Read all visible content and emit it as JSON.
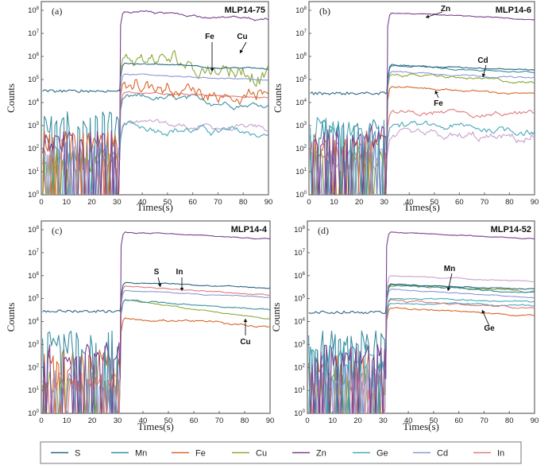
{
  "chart_data": [
    {
      "type": "line",
      "panel_label": "(a)",
      "title": "MLP14-75",
      "xlabel": "Times(s)",
      "ylabel": "Counts",
      "xlim": [
        0,
        90
      ],
      "ylim_log10": [
        0,
        8
      ],
      "x_ticks": [
        "0",
        "10",
        "20",
        "30",
        "40",
        "50",
        "60",
        "70",
        "80",
        "90"
      ],
      "y_ticks": [
        "10^0",
        "10^1",
        "10^2",
        "10^3",
        "10^4",
        "10^5",
        "10^6",
        "10^7",
        "10^8"
      ],
      "signal_onset_s": 31,
      "series": [
        {
          "name": "Zn",
          "background_log": 2.0,
          "signal_log_start": 7.95,
          "signal_log_end": 7.6,
          "noise": 0.05
        },
        {
          "name": "S",
          "background_log": 4.5,
          "signal_log_start": 5.7,
          "signal_log_end": 5.45,
          "noise": 0.03
        },
        {
          "name": "Cd",
          "background_log": 1.5,
          "signal_log_start": 5.25,
          "signal_log_end": 4.95,
          "noise": 0.03
        },
        {
          "name": "Cu",
          "background_log": 1.2,
          "signal_log_start": 6.0,
          "signal_log_end": 5.3,
          "noise": 0.35
        },
        {
          "name": "Fe",
          "background_log": 2.0,
          "signal_log_start": 4.9,
          "signal_log_end": 4.2,
          "noise": 0.3
        },
        {
          "name": "In",
          "background_log": 1.0,
          "signal_log_start": 4.45,
          "signal_log_end": 4.2,
          "noise": 0.03
        },
        {
          "name": "Mn",
          "background_log": 2.8,
          "signal_log_start": 4.25,
          "signal_log_end": 3.9,
          "noise": 0.12
        },
        {
          "name": "Ge",
          "background_log": 1.2,
          "signal_log_start": 3.0,
          "signal_log_end": 2.6,
          "noise": 0.15
        },
        {
          "name": "Cd-lavender",
          "background_log": 1.2,
          "signal_log_start": 3.1,
          "signal_log_end": 2.8,
          "noise": 0.12
        }
      ],
      "annotations": [
        {
          "text": "Fe"
        },
        {
          "text": "Cu"
        }
      ]
    },
    {
      "type": "line",
      "panel_label": "(b)",
      "title": "MLP14-6",
      "xlabel": "Times(s)",
      "ylabel": "Counts",
      "xlim": [
        0,
        90
      ],
      "ylim_log10": [
        0,
        8
      ],
      "x_ticks": [
        "0",
        "10",
        "20",
        "30",
        "40",
        "50",
        "60",
        "70",
        "80",
        "90"
      ],
      "y_ticks": [
        "10^0",
        "10^1",
        "10^2",
        "10^3",
        "10^4",
        "10^5",
        "10^6",
        "10^7",
        "10^8"
      ],
      "signal_onset_s": 31,
      "series": [
        {
          "name": "Zn",
          "background_log": 2.2,
          "signal_log_start": 7.9,
          "signal_log_end": 7.6,
          "noise": 0.02
        },
        {
          "name": "S",
          "background_log": 4.4,
          "signal_log_start": 5.65,
          "signal_log_end": 5.4,
          "noise": 0.03
        },
        {
          "name": "Mn",
          "background_log": 2.5,
          "signal_log_start": 5.6,
          "signal_log_end": 5.3,
          "noise": 0.03
        },
        {
          "name": "Cd",
          "background_log": 1.5,
          "signal_log_start": 5.35,
          "signal_log_end": 5.05,
          "noise": 0.03
        },
        {
          "name": "Cu",
          "background_log": 1.2,
          "signal_log_start": 5.25,
          "signal_log_end": 4.85,
          "noise": 0.06
        },
        {
          "name": "Fe",
          "background_log": 2.0,
          "signal_log_start": 4.7,
          "signal_log_end": 4.35,
          "noise": 0.04
        },
        {
          "name": "In",
          "background_log": 1.5,
          "signal_log_start": 3.55,
          "signal_log_end": 3.5,
          "noise": 0.1
        },
        {
          "name": "Ge",
          "background_log": 2.6,
          "signal_log_start": 3.0,
          "signal_log_end": 2.8,
          "noise": 0.15
        },
        {
          "name": "Cd-lavender",
          "background_log": 1.2,
          "signal_log_start": 2.5,
          "signal_log_end": 2.4,
          "noise": 0.18
        }
      ],
      "annotations": [
        {
          "text": "Zn"
        },
        {
          "text": "Cd"
        },
        {
          "text": "Fe"
        }
      ]
    },
    {
      "type": "line",
      "panel_label": "(c)",
      "title": "MLP14-4",
      "xlabel": "Times(s)",
      "ylabel": "Counts",
      "xlim": [
        0,
        90
      ],
      "ylim_log10": [
        0,
        8
      ],
      "x_ticks": [
        "0",
        "10",
        "20",
        "30",
        "40",
        "50",
        "60",
        "70",
        "80",
        "90"
      ],
      "y_ticks": [
        "10^0",
        "10^1",
        "10^2",
        "10^3",
        "10^4",
        "10^5",
        "10^6",
        "10^7",
        "10^8"
      ],
      "signal_onset_s": 31,
      "series": [
        {
          "name": "Zn",
          "background_log": 2.3,
          "signal_log_start": 7.9,
          "signal_log_end": 7.6,
          "noise": 0.02
        },
        {
          "name": "S",
          "background_log": 4.45,
          "signal_log_start": 5.7,
          "signal_log_end": 5.45,
          "noise": 0.02
        },
        {
          "name": "In",
          "background_log": 1.0,
          "signal_log_start": 5.55,
          "signal_log_end": 5.15,
          "noise": 0.02
        },
        {
          "name": "Cd",
          "background_log": 1.2,
          "signal_log_start": 5.35,
          "signal_log_end": 5.05,
          "noise": 0.02
        },
        {
          "name": "Mn",
          "background_log": 2.8,
          "signal_log_start": 4.95,
          "signal_log_end": 4.5,
          "noise": 0.03
        },
        {
          "name": "Cu",
          "background_log": 1.0,
          "signal_log_start": 4.95,
          "signal_log_end": 4.1,
          "noise": 0.02
        },
        {
          "name": "Fe",
          "background_log": 2.0,
          "signal_log_start": 4.15,
          "signal_log_end": 3.8,
          "noise": 0.05
        }
      ],
      "annotations": [
        {
          "text": "S"
        },
        {
          "text": "In"
        },
        {
          "text": "Cu"
        }
      ]
    },
    {
      "type": "line",
      "panel_label": "(d)",
      "title": "MLP14-52",
      "xlabel": "Times(s)",
      "ylabel": "Counts",
      "xlim": [
        0,
        90
      ],
      "ylim_log10": [
        0,
        8
      ],
      "x_ticks": [
        "0",
        "10",
        "20",
        "30",
        "40",
        "50",
        "60",
        "70",
        "80",
        "90"
      ],
      "y_ticks": [
        "10^0",
        "10^1",
        "10^2",
        "10^3",
        "10^4",
        "10^5",
        "10^6",
        "10^7",
        "10^8"
      ],
      "signal_onset_s": 31,
      "series": [
        {
          "name": "Zn",
          "background_log": 2.2,
          "signal_log_start": 7.9,
          "signal_log_end": 7.6,
          "noise": 0.02
        },
        {
          "name": "Cd-lavender",
          "background_log": 1.2,
          "signal_log_start": 6.0,
          "signal_log_end": 5.75,
          "noise": 0.02
        },
        {
          "name": "S",
          "background_log": 4.4,
          "signal_log_start": 5.65,
          "signal_log_end": 5.4,
          "noise": 0.02
        },
        {
          "name": "Mn",
          "background_log": 2.8,
          "signal_log_start": 5.6,
          "signal_log_end": 5.25,
          "noise": 0.03
        },
        {
          "name": "Cu",
          "background_log": 1.0,
          "signal_log_start": 5.55,
          "signal_log_end": 5.3,
          "noise": 0.04
        },
        {
          "name": "Cd",
          "background_log": 1.2,
          "signal_log_start": 5.4,
          "signal_log_end": 5.05,
          "noise": 0.02
        },
        {
          "name": "Ge",
          "background_log": 2.3,
          "signal_log_start": 5.0,
          "signal_log_end": 4.85,
          "noise": 0.03
        },
        {
          "name": "In",
          "background_log": 1.0,
          "signal_log_start": 4.95,
          "signal_log_end": 4.55,
          "noise": 0.04
        },
        {
          "name": "Ge2",
          "background_log": 1.5,
          "signal_log_start": 4.8,
          "signal_log_end": 4.7,
          "noise": 0.03
        },
        {
          "name": "Fe",
          "background_log": 2.0,
          "signal_log_start": 4.6,
          "signal_log_end": 4.25,
          "noise": 0.03
        }
      ],
      "annotations": [
        {
          "text": "Mn"
        },
        {
          "text": "Ge"
        }
      ]
    }
  ],
  "series_colors": {
    "S": "#2c6783",
    "Mn": "#3a8ea2",
    "Fe": "#d8662a",
    "Cu": "#8aa83a",
    "Zn": "#7b3f8f",
    "Ge": "#4aa8ba",
    "Ge2": "#4aa8ba",
    "Cd": "#8d98d2",
    "Cd-lavender": "#c8a2cd",
    "In": "#e07b7b"
  },
  "legend": {
    "items": [
      {
        "name": "S",
        "color": "#2c6783"
      },
      {
        "name": "Mn",
        "color": "#3a8ea2"
      },
      {
        "name": "Fe",
        "color": "#d8662a"
      },
      {
        "name": "Cu",
        "color": "#8aa83a"
      },
      {
        "name": "Zn",
        "color": "#7b3f8f"
      },
      {
        "name": "Ge",
        "color": "#4aa8ba"
      },
      {
        "name": "Cd",
        "color": "#8d98d2"
      },
      {
        "name": "In",
        "color": "#e07b7b"
      }
    ]
  }
}
